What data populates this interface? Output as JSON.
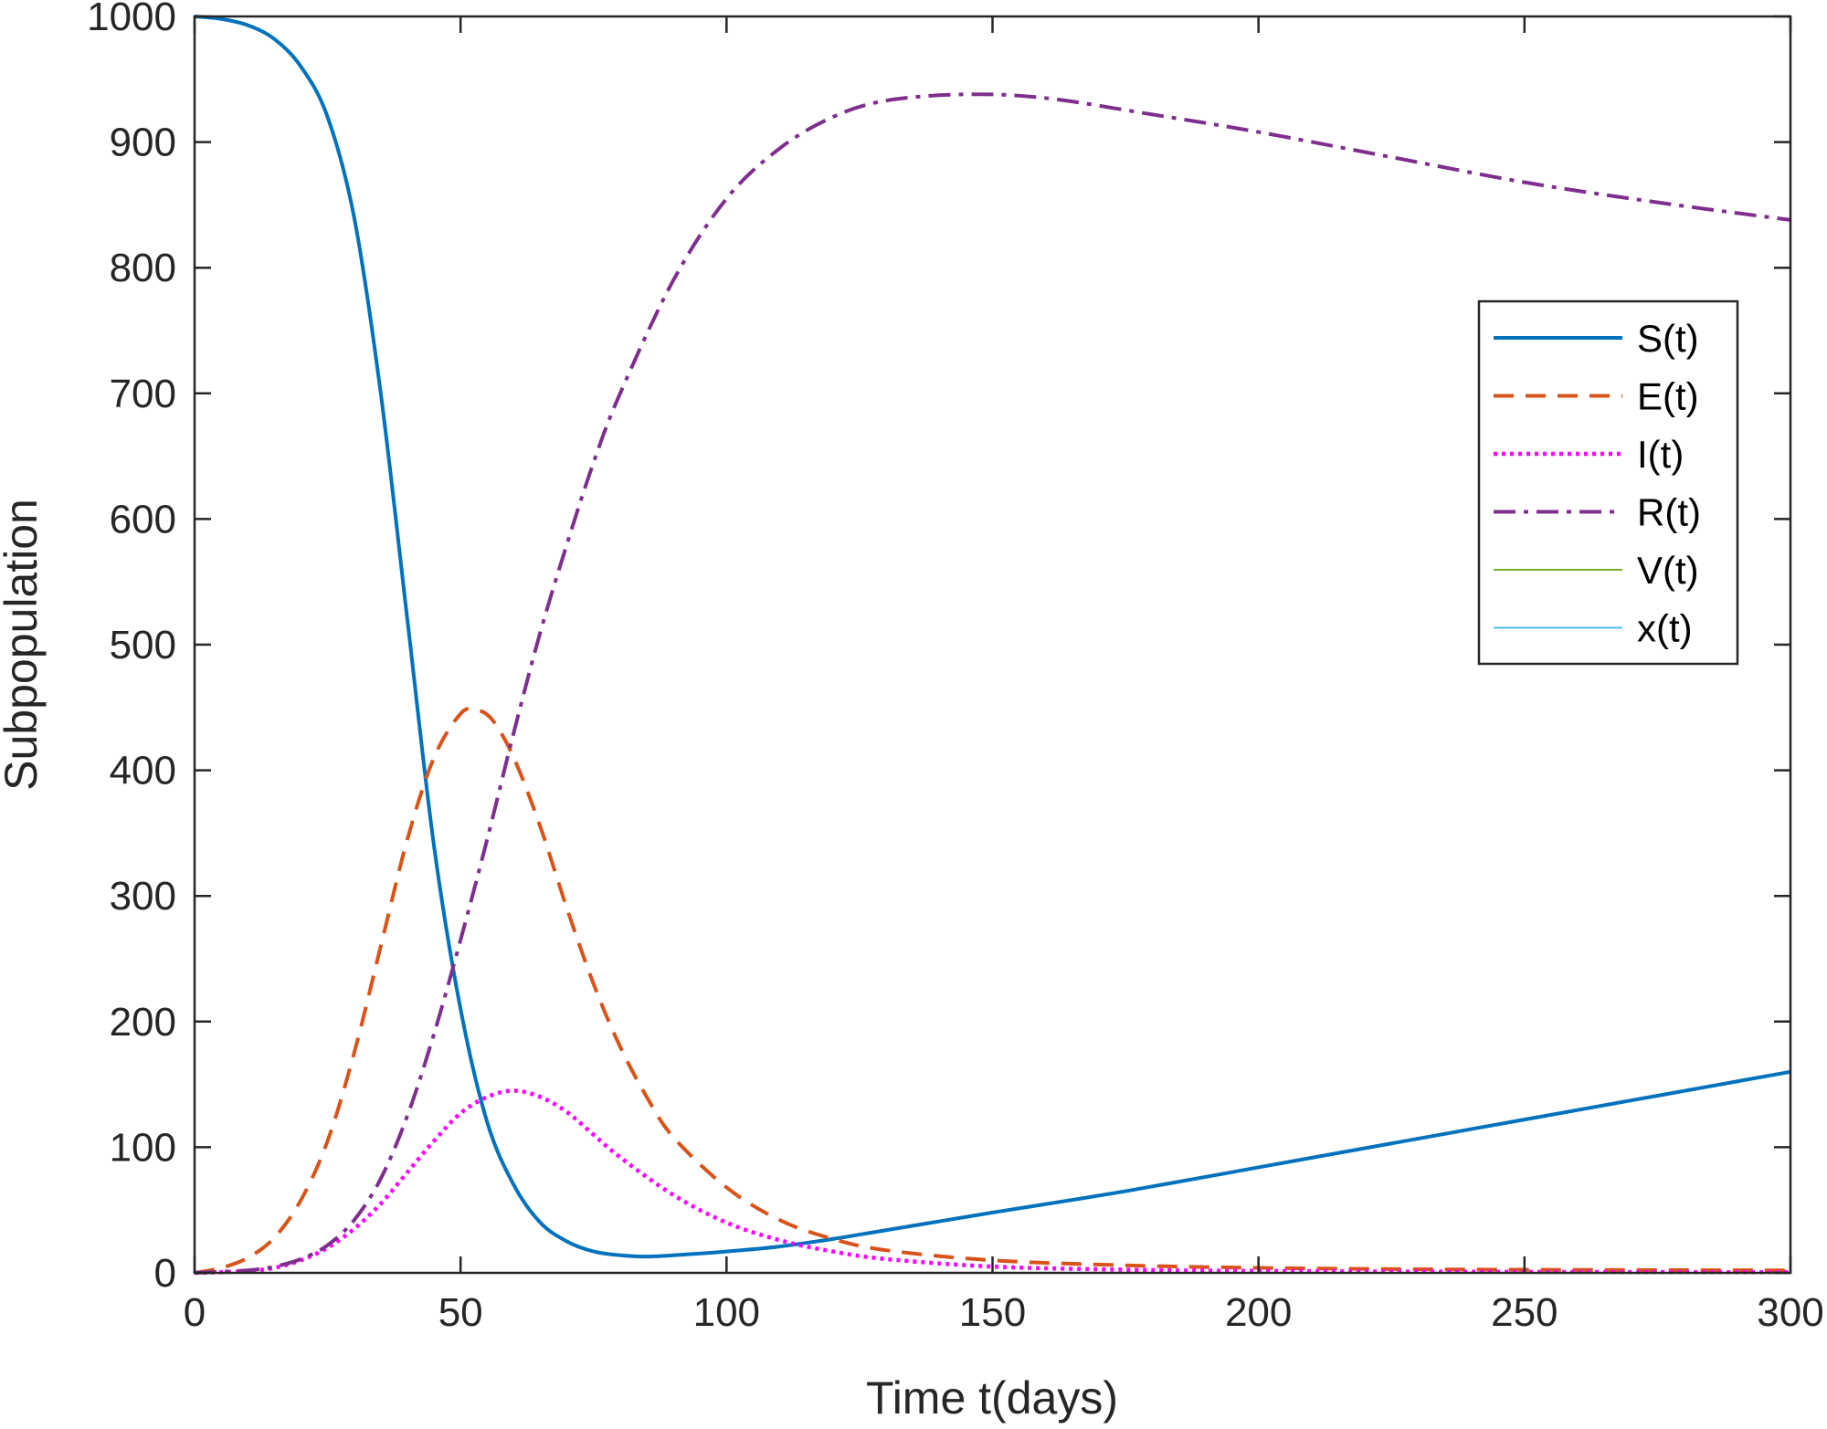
{
  "chart_data": {
    "type": "line",
    "title": "",
    "xlabel": "Time t(days)",
    "ylabel": "Subpopulation",
    "xlim": [
      0,
      300
    ],
    "ylim": [
      0,
      1000
    ],
    "xticks": [
      0,
      50,
      100,
      150,
      200,
      250,
      300
    ],
    "yticks": [
      0,
      100,
      200,
      300,
      400,
      500,
      600,
      700,
      800,
      900,
      1000
    ],
    "grid": false,
    "legend_position": "right",
    "series": [
      {
        "name": "S(t)",
        "color": "#0072bd",
        "dash": "solid",
        "x": [
          0,
          5,
          10,
          15,
          20,
          25,
          30,
          35,
          40,
          45,
          50,
          55,
          60,
          65,
          70,
          75,
          80,
          85,
          90,
          100,
          110,
          120,
          130,
          150,
          175,
          200,
          225,
          250,
          275,
          300
        ],
        "y": [
          1000,
          998,
          993,
          982,
          960,
          920,
          840,
          700,
          520,
          340,
          210,
          120,
          70,
          40,
          25,
          17,
          14,
          13,
          14,
          17,
          21,
          27,
          34,
          48,
          65,
          84,
          103,
          122,
          141,
          160
        ]
      },
      {
        "name": "E(t)",
        "color": "#d95319",
        "dash": "dashed",
        "x": [
          0,
          5,
          10,
          15,
          20,
          25,
          30,
          35,
          40,
          45,
          50,
          53,
          56,
          60,
          65,
          70,
          75,
          80,
          85,
          90,
          100,
          110,
          120,
          130,
          150,
          175,
          200,
          225,
          250,
          275,
          300
        ],
        "y": [
          0,
          4,
          12,
          28,
          58,
          105,
          175,
          260,
          345,
          410,
          445,
          448,
          440,
          410,
          355,
          290,
          230,
          180,
          140,
          108,
          68,
          42,
          27,
          18,
          10,
          6,
          4,
          3,
          2.5,
          2.2,
          2
        ]
      },
      {
        "name": "I(t)",
        "color": "#ff00ff",
        "dash": "dotted",
        "x": [
          0,
          5,
          10,
          15,
          20,
          25,
          30,
          35,
          40,
          45,
          50,
          55,
          60,
          65,
          70,
          75,
          80,
          90,
          100,
          110,
          120,
          130,
          150,
          175,
          200,
          250,
          300
        ],
        "y": [
          0,
          0.5,
          1.5,
          4,
          10,
          20,
          35,
          55,
          80,
          105,
          127,
          140,
          145,
          140,
          128,
          110,
          92,
          62,
          40,
          26,
          17,
          11,
          5,
          2.5,
          1.5,
          0.8,
          0.5
        ]
      },
      {
        "name": "R(t)",
        "color": "#7e2f8e",
        "dash": "dashdot",
        "x": [
          0,
          10,
          15,
          20,
          25,
          30,
          35,
          40,
          45,
          50,
          55,
          60,
          65,
          70,
          75,
          80,
          90,
          100,
          110,
          120,
          130,
          145,
          160,
          180,
          200,
          225,
          250,
          275,
          300
        ],
        "y": [
          0,
          2,
          5,
          11,
          22,
          42,
          75,
          125,
          190,
          265,
          345,
          430,
          510,
          580,
          645,
          700,
          790,
          855,
          895,
          920,
          933,
          938,
          935,
          922,
          908,
          888,
          868,
          852,
          838
        ]
      },
      {
        "name": "V(t)",
        "color": "#77ac30",
        "dash": "solid-thin",
        "x": [
          0,
          300
        ],
        "y": [
          0,
          0
        ]
      },
      {
        "name": "x(t)",
        "color": "#4dbeee",
        "dash": "solid-thin",
        "x": [
          0,
          300
        ],
        "y": [
          0,
          0
        ]
      }
    ]
  }
}
